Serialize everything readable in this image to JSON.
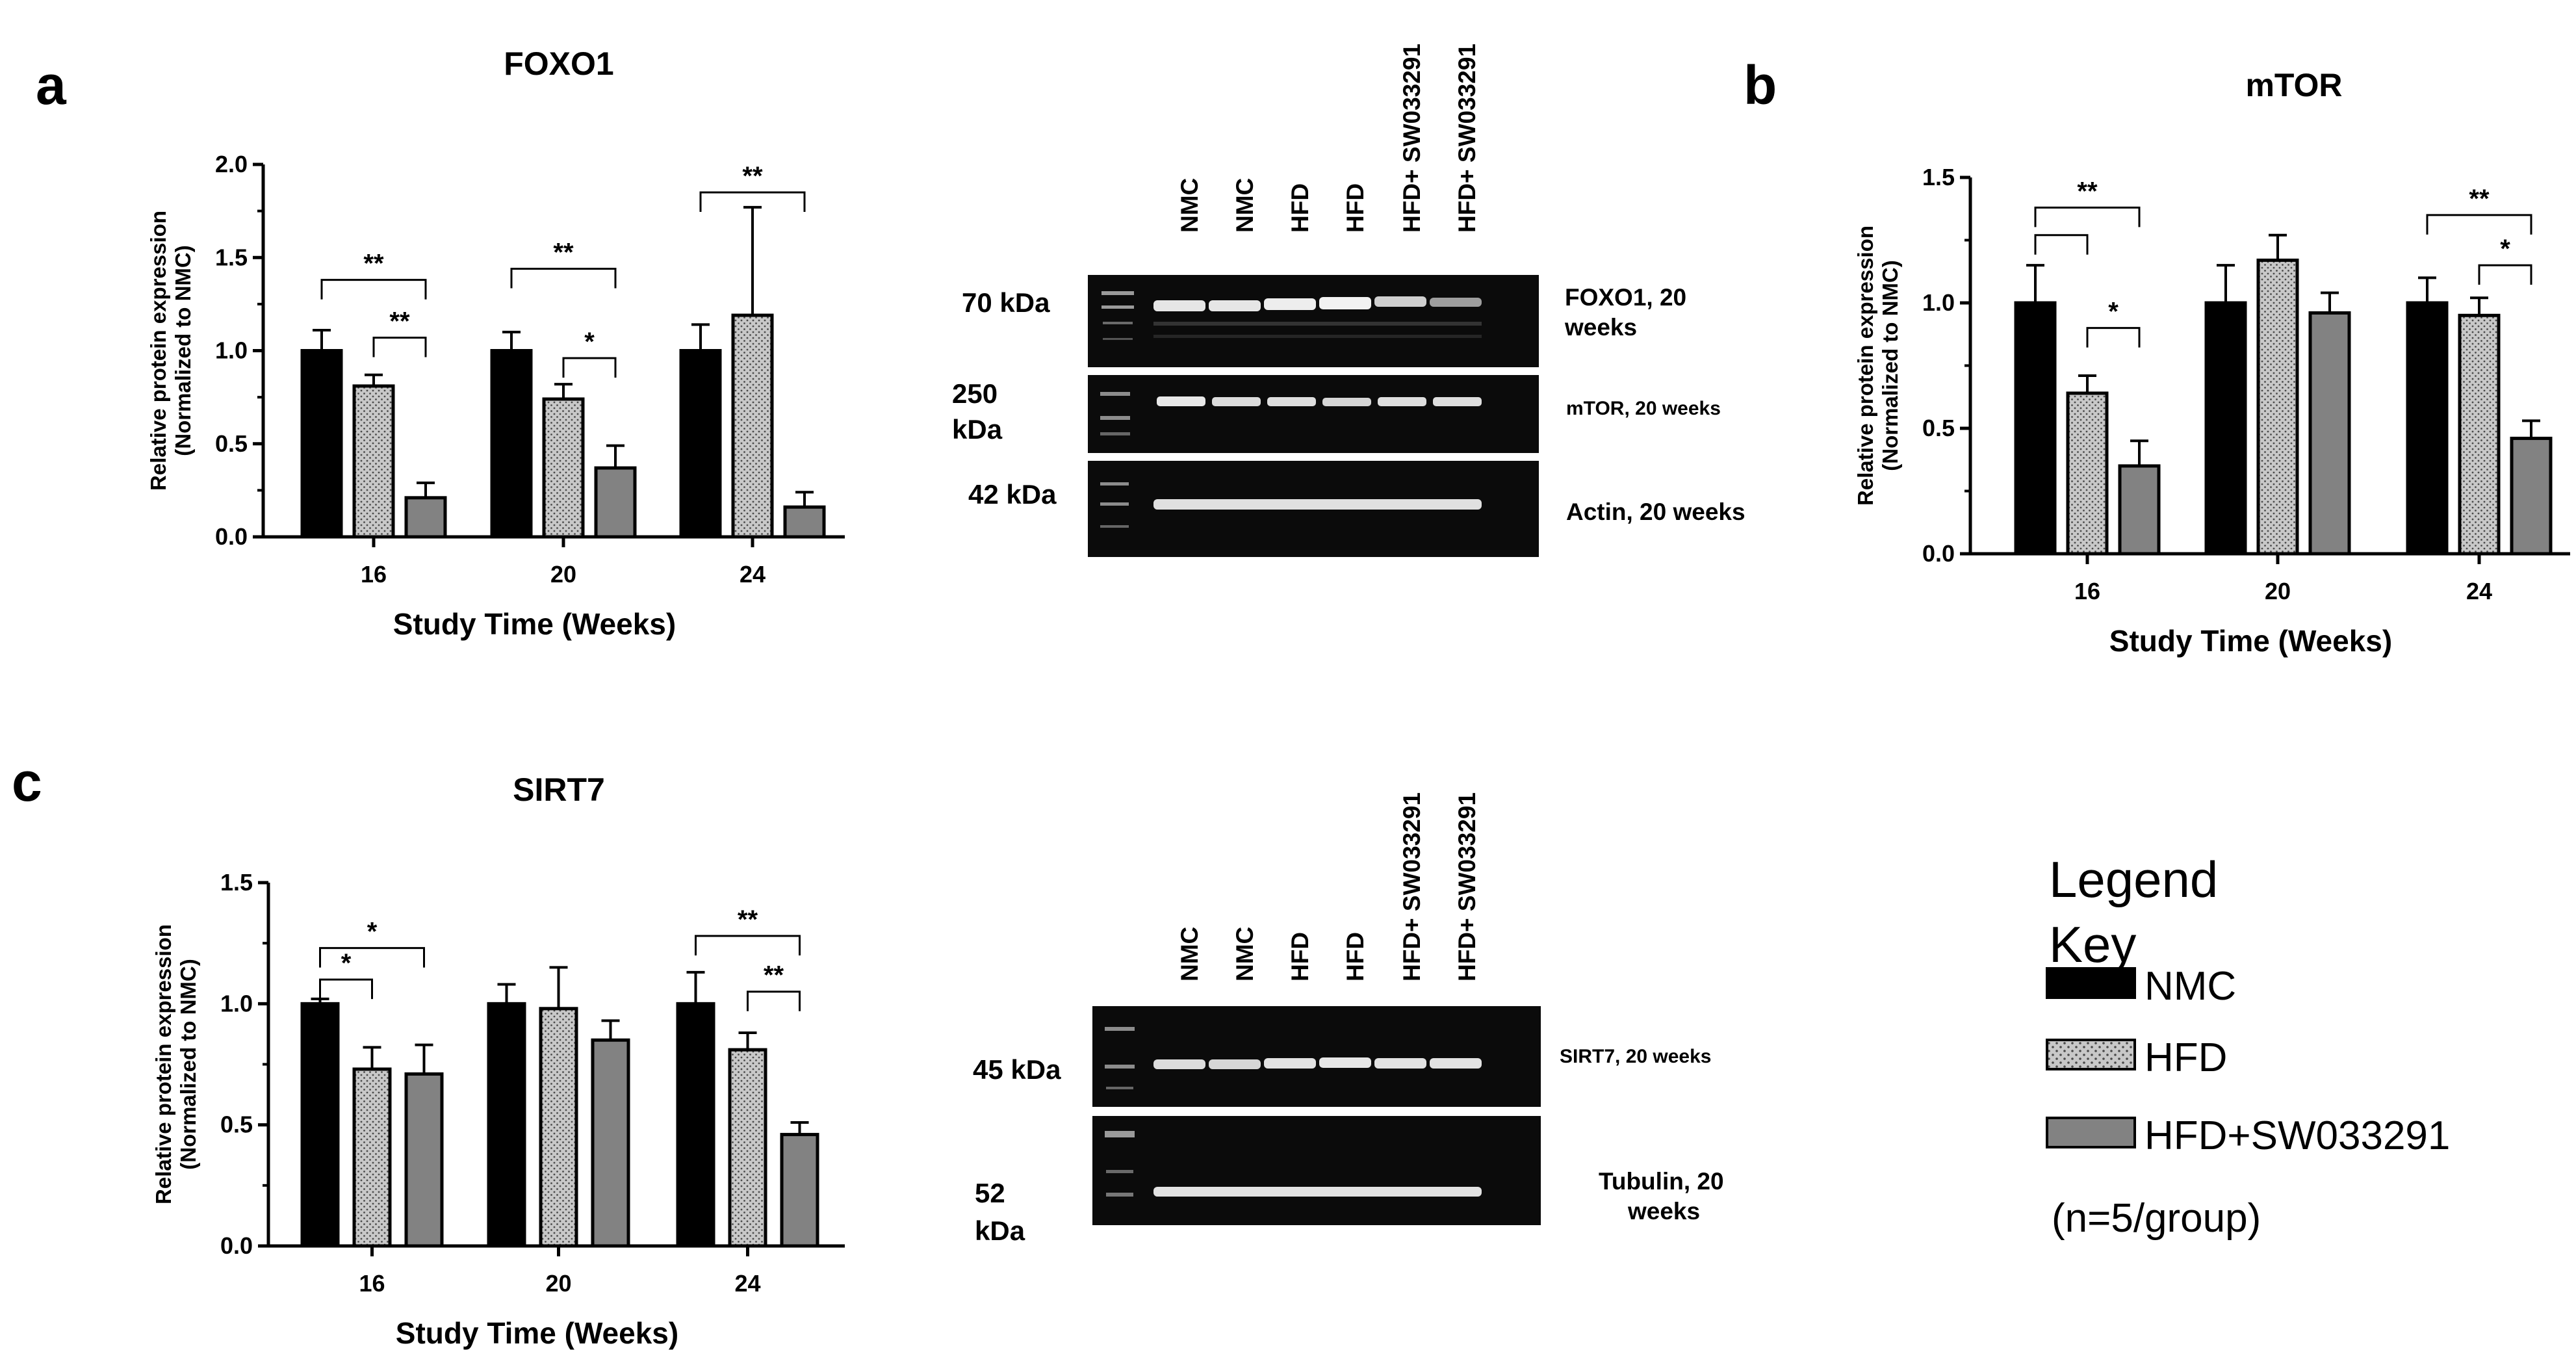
{
  "figure": {
    "panel_letters": [
      "a",
      "b",
      "c"
    ],
    "legend": {
      "title": "Legend Key",
      "items": [
        {
          "label": "NMC",
          "pattern": "solid-black"
        },
        {
          "label": "HFD",
          "pattern": "dotted-grey"
        },
        {
          "label": "HFD+SW033291",
          "pattern": "solid-grey"
        }
      ],
      "note": "(n=5/group)"
    },
    "blots": [
      {
        "lanes": [
          "NMC",
          "NMC",
          "HFD",
          "HFD",
          "HFD+ SW033291",
          "HFD+ SW033291"
        ],
        "strips": [
          {
            "kda": "70 kDa",
            "label": "FOXO1, 20 weeks"
          },
          {
            "kda": "250 kDa",
            "label": "mTOR, 20 weeks"
          },
          {
            "kda": "42 kDa",
            "label": "Actin, 20 weeks"
          }
        ]
      },
      {
        "lanes": [
          "NMC",
          "NMC",
          "HFD",
          "HFD",
          "HFD+ SW033291",
          "HFD+ SW033291"
        ],
        "strips": [
          {
            "kda": "45 kDa",
            "label": "SIRT7, 20 weeks"
          },
          {
            "kda": "52 kDa",
            "label": "Tubulin, 20 weeks"
          }
        ]
      }
    ]
  },
  "chart_data": [
    {
      "panel": "a",
      "type": "bar",
      "title": "FOXO1",
      "xlabel": "Study Time (Weeks)",
      "ylabel": "Relative protein expression (Normalized to NMC)",
      "ylim": [
        0,
        2.0
      ],
      "yticks": [
        "0.0",
        "0.5",
        "1.0",
        "1.5",
        "2.0"
      ],
      "categories": [
        "16",
        "20",
        "24"
      ],
      "series": [
        {
          "name": "NMC",
          "values": [
            1.0,
            1.0,
            1.0
          ],
          "errors": [
            0.11,
            0.1,
            0.14
          ]
        },
        {
          "name": "HFD",
          "values": [
            0.81,
            0.74,
            1.19
          ],
          "errors": [
            0.06,
            0.08,
            0.58
          ]
        },
        {
          "name": "HFD+SW033291",
          "values": [
            0.21,
            0.37,
            0.16
          ],
          "errors": [
            0.08,
            0.12,
            0.08
          ]
        }
      ],
      "significance": [
        {
          "group": "16",
          "from": 0,
          "to": 2,
          "label": "**",
          "level": 1.38
        },
        {
          "group": "16",
          "from": 1,
          "to": 2,
          "label": "**",
          "level": 1.07
        },
        {
          "group": "20",
          "from": 0,
          "to": 2,
          "label": "**",
          "level": 1.44
        },
        {
          "group": "20",
          "from": 1,
          "to": 2,
          "label": "*",
          "level": 0.96
        },
        {
          "group": "24",
          "from": 0,
          "to": 2,
          "label": "**",
          "level": 1.85
        }
      ]
    },
    {
      "panel": "b",
      "type": "bar",
      "title": "mTOR",
      "xlabel": "Study Time (Weeks)",
      "ylabel": "Relative protein expression (Normalized to NMC)",
      "ylim": [
        0,
        1.5
      ],
      "yticks": [
        "0.0",
        "0.5",
        "1.0",
        "1.5"
      ],
      "categories": [
        "16",
        "20",
        "24"
      ],
      "series": [
        {
          "name": "NMC",
          "values": [
            1.0,
            1.0,
            1.0
          ],
          "errors": [
            0.15,
            0.15,
            0.1
          ]
        },
        {
          "name": "HFD",
          "values": [
            0.64,
            1.17,
            0.95
          ],
          "errors": [
            0.07,
            0.1,
            0.07
          ]
        },
        {
          "name": "HFD+SW033291",
          "values": [
            0.35,
            0.96,
            0.46
          ],
          "errors": [
            0.1,
            0.08,
            0.07
          ]
        }
      ],
      "significance": [
        {
          "group": "16",
          "from": 0,
          "to": 2,
          "label": "**",
          "level": 1.38
        },
        {
          "group": "16",
          "from": 0,
          "to": 1,
          "label": "",
          "level": 1.27
        },
        {
          "group": "16",
          "from": 1,
          "to": 2,
          "label": "*",
          "level": 0.9
        },
        {
          "group": "24",
          "from": 0,
          "to": 2,
          "label": "**",
          "level": 1.35
        },
        {
          "group": "24",
          "from": 1,
          "to": 2,
          "label": "*",
          "level": 1.15
        }
      ]
    },
    {
      "panel": "c",
      "type": "bar",
      "title": "SIRT7",
      "xlabel": "Study Time (Weeks)",
      "ylabel": "Relative protein expression (Normalized to NMC)",
      "ylim": [
        0,
        1.5
      ],
      "yticks": [
        "0.0",
        "0.5",
        "1.0",
        "1.5"
      ],
      "categories": [
        "16",
        "20",
        "24"
      ],
      "series": [
        {
          "name": "NMC",
          "values": [
            1.0,
            1.0,
            1.0
          ],
          "errors": [
            0.02,
            0.08,
            0.13
          ]
        },
        {
          "name": "HFD",
          "values": [
            0.73,
            0.98,
            0.81
          ],
          "errors": [
            0.09,
            0.17,
            0.07
          ]
        },
        {
          "name": "HFD+SW033291",
          "values": [
            0.71,
            0.85,
            0.46
          ],
          "errors": [
            0.12,
            0.08,
            0.05
          ]
        }
      ],
      "significance": [
        {
          "group": "16",
          "from": 0,
          "to": 2,
          "label": "*",
          "level": 1.23
        },
        {
          "group": "16",
          "from": 0,
          "to": 1,
          "label": "*",
          "level": 1.1
        },
        {
          "group": "24",
          "from": 0,
          "to": 2,
          "label": "**",
          "level": 1.28
        },
        {
          "group": "24",
          "from": 1,
          "to": 2,
          "label": "**",
          "level": 1.05
        }
      ]
    }
  ]
}
